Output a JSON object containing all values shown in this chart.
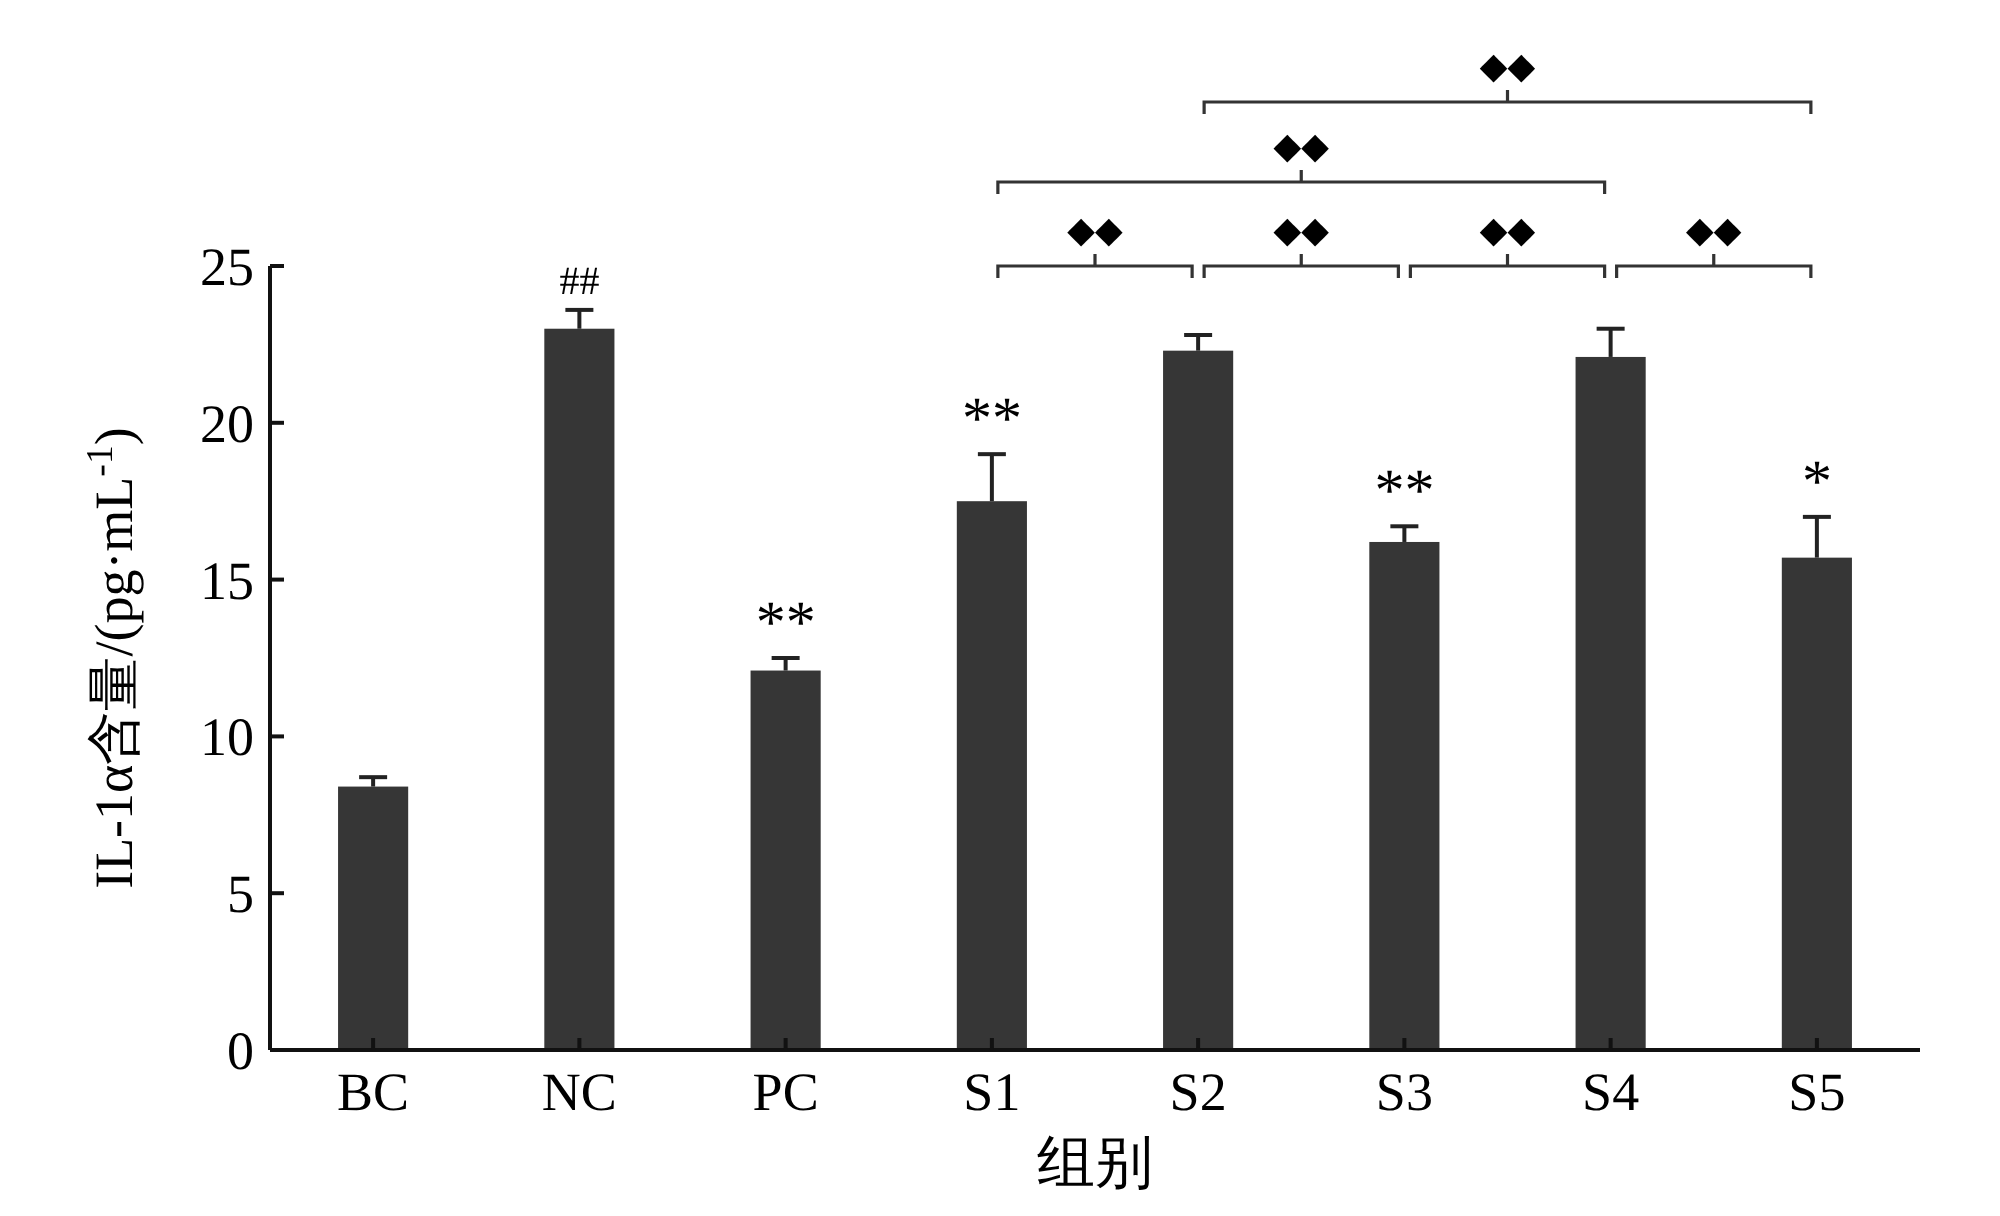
{
  "chart_data": {
    "type": "bar",
    "xlabel": "组别",
    "ylabel": "IL-1α含量/(pg·mL$^{-1}$)",
    "categories": [
      "BC",
      "NC",
      "PC",
      "S1",
      "S2",
      "S3",
      "S4",
      "S5"
    ],
    "values": [
      8.4,
      23.0,
      12.1,
      17.5,
      22.3,
      16.2,
      22.1,
      15.7
    ],
    "errors": [
      0.3,
      0.6,
      0.4,
      1.5,
      0.5,
      0.5,
      0.9,
      1.3
    ],
    "color": "#363636",
    "ylim": [
      0,
      25
    ],
    "yticks": [
      0,
      5,
      10,
      15,
      20,
      25
    ],
    "grid": false,
    "annotations": [
      {
        "text": "##",
        "x": "NC",
        "y": 23.6
      },
      {
        "text": "**",
        "x": "PC",
        "y": 12.5
      },
      {
        "text": "**",
        "x": "S1",
        "y": 19.0
      },
      {
        "text": "**",
        "x": "S3",
        "y": 16.7
      },
      {
        "text": "*",
        "x": "S5",
        "y": 17.0
      },
      "◆◆",
      "◆◆",
      "◆◆",
      "◆◆",
      "◆◆",
      "◆◆"
    ]
  }
}
